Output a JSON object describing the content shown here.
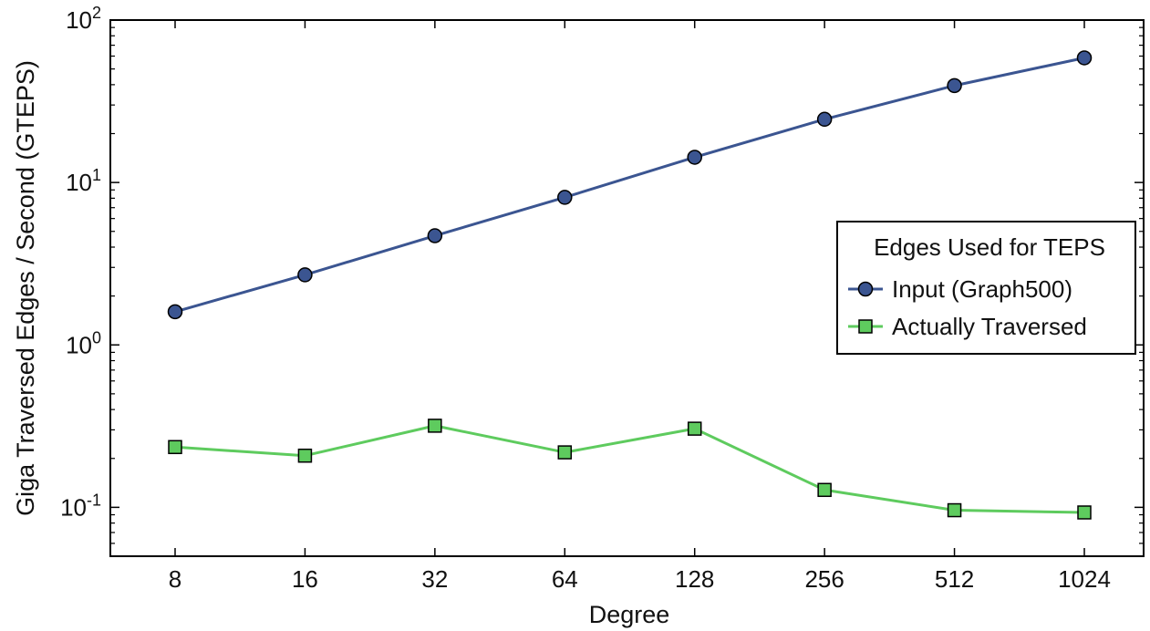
{
  "chart_data": {
    "type": "line",
    "xlabel": "Degree",
    "ylabel": "Giga Traversed Edges / Second (GTEPS)",
    "x_scale": "log2",
    "y_scale": "log10",
    "categories": [
      "8",
      "16",
      "32",
      "64",
      "128",
      "256",
      "512",
      "1024"
    ],
    "x": [
      8,
      16,
      32,
      64,
      128,
      256,
      512,
      1024
    ],
    "ylim": [
      0.05,
      100
    ],
    "y_ticks": [
      {
        "value": 0.1,
        "base": "10",
        "exp": "-1"
      },
      {
        "value": 1,
        "base": "10",
        "exp": "0"
      },
      {
        "value": 10,
        "base": "10",
        "exp": "1"
      },
      {
        "value": 100,
        "base": "10",
        "exp": "2"
      }
    ],
    "grid": false,
    "legend": {
      "title": "Edges Used for TEPS",
      "placement": "center-right"
    },
    "series": [
      {
        "name": "Input (Graph500)",
        "color": "#3b5591",
        "marker": "circle",
        "values": [
          1.6,
          2.7,
          4.7,
          8.1,
          14.3,
          24.5,
          39.5,
          58.5
        ]
      },
      {
        "name": "Actually Traversed",
        "color": "#5ecb5e",
        "marker": "square",
        "values": [
          0.235,
          0.208,
          0.318,
          0.218,
          0.305,
          0.128,
          0.096,
          0.093
        ]
      }
    ]
  }
}
